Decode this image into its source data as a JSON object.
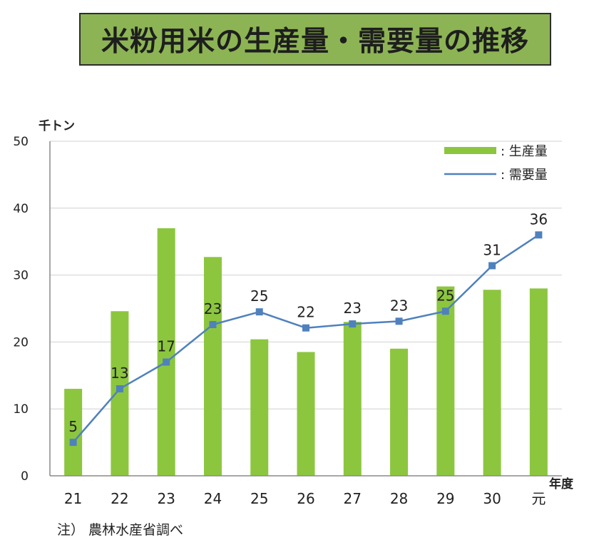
{
  "title": "米粉用米の生産量・需要量の推移",
  "note": "注） 農林水産省調べ",
  "colors": {
    "bar": "#8cc63f",
    "line": "#4f81bd",
    "title_bg": "#8cb454"
  },
  "chart_data": {
    "type": "bar",
    "ylabel": "千トン",
    "xlabel": "年度",
    "ylim": [
      0,
      50
    ],
    "yticks": [
      0,
      10,
      20,
      30,
      40,
      50
    ],
    "categories": [
      "21",
      "22",
      "23",
      "24",
      "25",
      "26",
      "27",
      "28",
      "29",
      "30",
      "元"
    ],
    "series": [
      {
        "name": "生産量",
        "type": "bar",
        "values": [
          13,
          24.6,
          37,
          32.7,
          20.4,
          18.5,
          23,
          19,
          28.3,
          27.8,
          28
        ]
      },
      {
        "name": "需要量",
        "type": "line",
        "values": [
          5,
          13,
          17,
          22.6,
          24.5,
          22.1,
          22.7,
          23.1,
          24.6,
          31.4,
          36
        ],
        "labels": [
          "5",
          "13",
          "17",
          "23",
          "25",
          "22",
          "23",
          "23",
          "25",
          "31",
          "36"
        ]
      }
    ],
    "legend": {
      "placement": "top-right",
      "entries": [
        ": 生産量",
        ": 需要量"
      ]
    },
    "grid": true
  }
}
